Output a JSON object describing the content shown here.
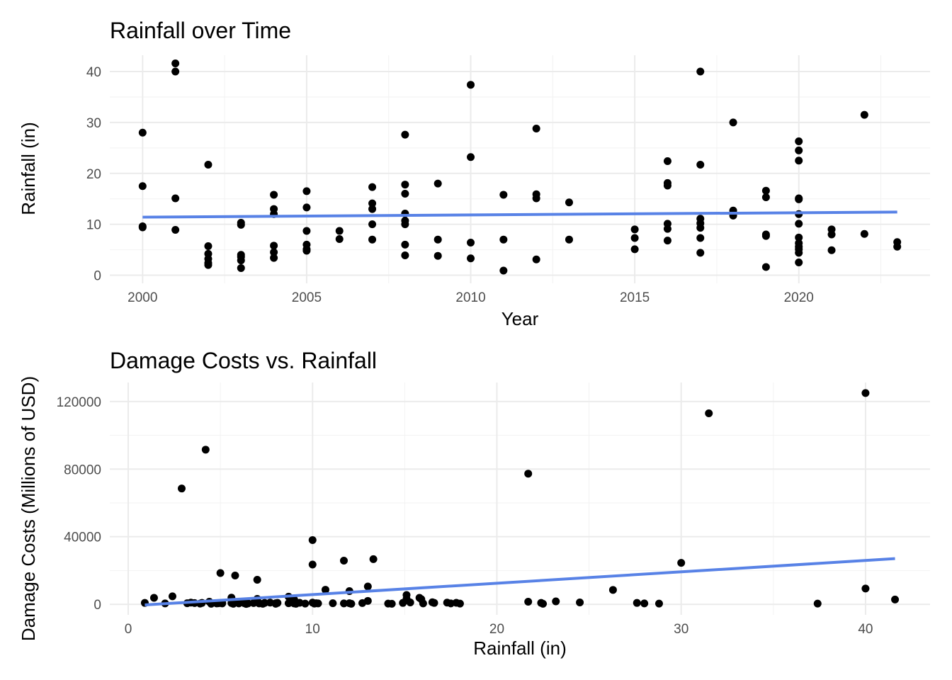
{
  "chart_data": [
    {
      "type": "scatter",
      "title": "Rainfall over Time",
      "xlabel": "Year",
      "ylabel": "Rainfall (in)",
      "xlim": [
        1999.0,
        2024.0
      ],
      "ylim": [
        -1.6,
        43.2
      ],
      "x_ticks": [
        2000,
        2005,
        2010,
        2015,
        2020
      ],
      "y_ticks": [
        0,
        10,
        20,
        30,
        40
      ],
      "grid": true,
      "point_color": "#000000",
      "trend_color": "#5882e6",
      "trend_line": {
        "x": [
          2000,
          2023
        ],
        "y": [
          11.4,
          12.4
        ]
      },
      "points": [
        [
          2000,
          28.0
        ],
        [
          2000,
          17.5
        ],
        [
          2000,
          9.6
        ],
        [
          2000,
          9.4
        ],
        [
          2001,
          41.6
        ],
        [
          2001,
          40.0
        ],
        [
          2001,
          15.1
        ],
        [
          2001,
          8.9
        ],
        [
          2002,
          21.7
        ],
        [
          2002,
          5.7
        ],
        [
          2002,
          4.2
        ],
        [
          2002,
          3.2
        ],
        [
          2002,
          2.4
        ],
        [
          2002,
          2.0
        ],
        [
          2003,
          10.3
        ],
        [
          2003,
          9.9
        ],
        [
          2003,
          4.0
        ],
        [
          2003,
          3.6
        ],
        [
          2003,
          2.9
        ],
        [
          2003,
          1.4
        ],
        [
          2004,
          15.8
        ],
        [
          2004,
          13.0
        ],
        [
          2004,
          12.0
        ],
        [
          2004,
          5.8
        ],
        [
          2004,
          4.5
        ],
        [
          2004,
          3.4
        ],
        [
          2005,
          16.5
        ],
        [
          2005,
          13.3
        ],
        [
          2005,
          8.7
        ],
        [
          2005,
          6.0
        ],
        [
          2005,
          5.1
        ],
        [
          2005,
          4.8
        ],
        [
          2006,
          8.7
        ],
        [
          2006,
          7.1
        ],
        [
          2007,
          17.3
        ],
        [
          2007,
          14.1
        ],
        [
          2007,
          13.0
        ],
        [
          2007,
          10.0
        ],
        [
          2007,
          7.0
        ],
        [
          2008,
          27.6
        ],
        [
          2008,
          17.8
        ],
        [
          2008,
          16.0
        ],
        [
          2008,
          12.1
        ],
        [
          2008,
          10.7
        ],
        [
          2008,
          10.0
        ],
        [
          2008,
          6.0
        ],
        [
          2008,
          3.9
        ],
        [
          2009,
          18.0
        ],
        [
          2009,
          7.0
        ],
        [
          2009,
          3.8
        ],
        [
          2010,
          37.4
        ],
        [
          2010,
          23.2
        ],
        [
          2010,
          6.4
        ],
        [
          2010,
          3.3
        ],
        [
          2011,
          15.8
        ],
        [
          2011,
          7.0
        ],
        [
          2011,
          0.9
        ],
        [
          2012,
          28.8
        ],
        [
          2012,
          15.9
        ],
        [
          2012,
          15.1
        ],
        [
          2012,
          3.1
        ],
        [
          2013,
          14.3
        ],
        [
          2013,
          7.0
        ],
        [
          2015,
          9.0
        ],
        [
          2015,
          7.3
        ],
        [
          2015,
          5.1
        ],
        [
          2016,
          22.4
        ],
        [
          2016,
          18.1
        ],
        [
          2016,
          17.6
        ],
        [
          2016,
          10.1
        ],
        [
          2016,
          9.1
        ],
        [
          2016,
          6.8
        ],
        [
          2017,
          40.0
        ],
        [
          2017,
          21.7
        ],
        [
          2017,
          11.1
        ],
        [
          2017,
          10.2
        ],
        [
          2017,
          9.3
        ],
        [
          2017,
          7.3
        ],
        [
          2017,
          4.4
        ],
        [
          2018,
          30.0
        ],
        [
          2018,
          12.7
        ],
        [
          2018,
          11.7
        ],
        [
          2019,
          16.6
        ],
        [
          2019,
          15.3
        ],
        [
          2019,
          8.0
        ],
        [
          2019,
          7.7
        ],
        [
          2019,
          1.6
        ],
        [
          2020,
          26.3
        ],
        [
          2020,
          24.5
        ],
        [
          2020,
          22.5
        ],
        [
          2020,
          15.1
        ],
        [
          2020,
          14.9
        ],
        [
          2020,
          12.0
        ],
        [
          2020,
          10.1
        ],
        [
          2020,
          7.4
        ],
        [
          2020,
          6.3
        ],
        [
          2020,
          5.6
        ],
        [
          2020,
          5.1
        ],
        [
          2020,
          4.4
        ],
        [
          2020,
          2.5
        ],
        [
          2021,
          9.0
        ],
        [
          2021,
          8.0
        ],
        [
          2021,
          4.9
        ],
        [
          2022,
          31.5
        ],
        [
          2022,
          8.1
        ],
        [
          2023,
          6.5
        ],
        [
          2023,
          5.6
        ]
      ]
    },
    {
      "type": "scatter",
      "title": "Damage Costs vs. Rainfall",
      "xlabel": "Rainfall (in)",
      "ylabel": "Damage Costs (Millions of USD)",
      "xlim": [
        -1.0,
        43.5
      ],
      "ylim": [
        -6250,
        131250
      ],
      "x_ticks": [
        0,
        10,
        20,
        30,
        40
      ],
      "y_ticks": [
        0,
        40000,
        80000,
        120000
      ],
      "grid": true,
      "point_color": "#000000",
      "trend_color": "#5882e6",
      "trend_line": {
        "x": [
          0.9,
          41.6
        ],
        "y": [
          -400,
          27000
        ]
      },
      "points": [
        [
          0.9,
          800
        ],
        [
          1.4,
          3800
        ],
        [
          2.0,
          500
        ],
        [
          2.4,
          4700
        ],
        [
          2.9,
          68500
        ],
        [
          3.2,
          600
        ],
        [
          3.4,
          1000
        ],
        [
          3.6,
          700
        ],
        [
          3.9,
          400
        ],
        [
          4.0,
          800
        ],
        [
          4.2,
          91500
        ],
        [
          4.4,
          1500
        ],
        [
          4.5,
          300
        ],
        [
          4.8,
          500
        ],
        [
          4.9,
          600
        ],
        [
          5.0,
          18500
        ],
        [
          5.1,
          800
        ],
        [
          5.1,
          500
        ],
        [
          5.6,
          3900
        ],
        [
          5.6,
          700
        ],
        [
          5.7,
          300
        ],
        [
          5.8,
          17000
        ],
        [
          6.0,
          500
        ],
        [
          6.0,
          800
        ],
        [
          6.3,
          600
        ],
        [
          6.4,
          200
        ],
        [
          6.5,
          500
        ],
        [
          6.8,
          700
        ],
        [
          7.0,
          14500
        ],
        [
          7.0,
          3200
        ],
        [
          7.0,
          1200
        ],
        [
          7.1,
          500
        ],
        [
          7.3,
          300
        ],
        [
          7.4,
          800
        ],
        [
          7.7,
          1000
        ],
        [
          8.0,
          600
        ],
        [
          8.0,
          300
        ],
        [
          8.1,
          800
        ],
        [
          8.7,
          4500
        ],
        [
          8.7,
          600
        ],
        [
          8.9,
          1200
        ],
        [
          9.0,
          500
        ],
        [
          9.0,
          2800
        ],
        [
          9.1,
          300
        ],
        [
          9.3,
          900
        ],
        [
          9.6,
          400
        ],
        [
          10.0,
          38000
        ],
        [
          10.0,
          23500
        ],
        [
          10.0,
          1000
        ],
        [
          10.1,
          400
        ],
        [
          10.2,
          600
        ],
        [
          10.3,
          500
        ],
        [
          10.7,
          8600
        ],
        [
          11.1,
          600
        ],
        [
          11.7,
          25800
        ],
        [
          11.7,
          500
        ],
        [
          12.0,
          7800
        ],
        [
          12.0,
          600
        ],
        [
          12.1,
          300
        ],
        [
          12.7,
          700
        ],
        [
          13.0,
          10500
        ],
        [
          13.0,
          2000
        ],
        [
          13.3,
          26700
        ],
        [
          14.1,
          400
        ],
        [
          14.3,
          300
        ],
        [
          14.9,
          800
        ],
        [
          15.1,
          3200
        ],
        [
          15.1,
          5500
        ],
        [
          15.3,
          1100
        ],
        [
          15.8,
          3800
        ],
        [
          15.9,
          3000
        ],
        [
          16.0,
          500
        ],
        [
          16.5,
          1200
        ],
        [
          16.6,
          800
        ],
        [
          17.3,
          1000
        ],
        [
          17.5,
          500
        ],
        [
          17.8,
          900
        ],
        [
          18.0,
          400
        ],
        [
          21.7,
          77300
        ],
        [
          21.7,
          1500
        ],
        [
          22.4,
          800
        ],
        [
          22.5,
          300
        ],
        [
          23.2,
          1700
        ],
        [
          24.5,
          1100
        ],
        [
          26.3,
          8500
        ],
        [
          27.6,
          800
        ],
        [
          28.0,
          500
        ],
        [
          28.8,
          400
        ],
        [
          30.0,
          24500
        ],
        [
          31.5,
          113000
        ],
        [
          37.4,
          400
        ],
        [
          40.0,
          125000
        ],
        [
          40.0,
          9300
        ],
        [
          41.6,
          2800
        ]
      ]
    }
  ]
}
